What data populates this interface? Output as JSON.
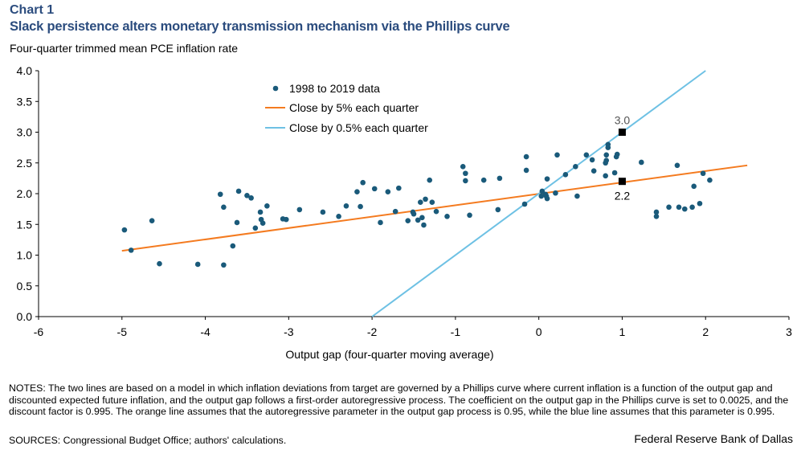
{
  "header": {
    "label": "Chart 1",
    "title": "Slack persistence alters monetary transmission mechanism via the Phillips curve"
  },
  "footer": {
    "notes": "NOTES: The two lines are based on a model in which inflation deviations from target are governed by a Phillips curve where current inflation is a function of the output gap and discounted expected future inflation, and the output gap follows a first-order autoregressive process. The coefficient on the output gap in the Phillips curve is set to 0.0025, and the discount factor is 0.995. The orange line assumes that the autoregressive parameter in the output gap process is 0.95, while the blue line assumes that this parameter is 0.995.",
    "sources": "SOURCES: Congressional Budget Office; authors' calculations.",
    "credit": "Federal Reserve Bank of Dallas"
  },
  "chart_data": {
    "type": "scatter",
    "ylabel": "Four-quarter trimmed mean PCE inflation rate",
    "xlabel": "Output gap (four-quarter moving average)",
    "xlim": [
      -6,
      3
    ],
    "ylim": [
      0,
      4
    ],
    "xticks": [
      -6,
      -5,
      -4,
      -3,
      -2,
      -1,
      0,
      1,
      2,
      3
    ],
    "yticks": [
      "0.0",
      "0.5",
      "1.0",
      "1.5",
      "2.0",
      "2.5",
      "3.0",
      "3.5",
      "4.0"
    ],
    "grid": false,
    "legend_position": "top-left",
    "colors": {
      "scatter": "#1a5a7a",
      "orange": "#f47b20",
      "blue": "#6ec1e4",
      "marker": "#000000"
    },
    "series": [
      {
        "name": "1998 to 2019 data",
        "kind": "scatter",
        "points": [
          [
            -4.97,
            1.41
          ],
          [
            -4.89,
            1.08
          ],
          [
            -4.64,
            1.56
          ],
          [
            -4.55,
            0.86
          ],
          [
            -4.09,
            0.85
          ],
          [
            -3.82,
            1.99
          ],
          [
            -3.78,
            1.78
          ],
          [
            -3.78,
            0.84
          ],
          [
            -3.67,
            1.15
          ],
          [
            -3.62,
            1.53
          ],
          [
            -3.6,
            2.04
          ],
          [
            -3.5,
            1.97
          ],
          [
            -3.45,
            1.93
          ],
          [
            -3.4,
            1.44
          ],
          [
            -3.34,
            1.7
          ],
          [
            -3.33,
            1.58
          ],
          [
            -3.31,
            1.52
          ],
          [
            -3.26,
            1.8
          ],
          [
            -3.07,
            1.59
          ],
          [
            -3.03,
            1.58
          ],
          [
            -2.87,
            1.74
          ],
          [
            -2.59,
            1.7
          ],
          [
            -2.4,
            1.63
          ],
          [
            -2.31,
            1.8
          ],
          [
            -2.18,
            2.03
          ],
          [
            -2.14,
            1.79
          ],
          [
            -2.11,
            2.18
          ],
          [
            -1.97,
            2.08
          ],
          [
            -1.9,
            1.53
          ],
          [
            -1.81,
            2.03
          ],
          [
            -1.72,
            1.71
          ],
          [
            -1.68,
            2.09
          ],
          [
            -1.57,
            1.56
          ],
          [
            -1.51,
            1.7
          ],
          [
            -1.5,
            1.67
          ],
          [
            -1.45,
            1.57
          ],
          [
            -1.42,
            1.86
          ],
          [
            -1.4,
            1.61
          ],
          [
            -1.38,
            1.49
          ],
          [
            -1.36,
            1.91
          ],
          [
            -1.31,
            2.22
          ],
          [
            -1.28,
            1.86
          ],
          [
            -1.23,
            1.71
          ],
          [
            -1.1,
            1.63
          ],
          [
            -0.91,
            2.44
          ],
          [
            -0.88,
            2.33
          ],
          [
            -0.88,
            2.21
          ],
          [
            -0.83,
            1.65
          ],
          [
            -0.66,
            2.22
          ],
          [
            -0.49,
            1.74
          ],
          [
            -0.47,
            2.25
          ],
          [
            -0.17,
            1.83
          ],
          [
            -0.15,
            2.6
          ],
          [
            -0.15,
            2.38
          ],
          [
            0.04,
            2.04
          ],
          [
            0.03,
            1.96
          ],
          [
            0.09,
            1.96
          ],
          [
            0.1,
            1.92
          ],
          [
            0.08,
            1.99
          ],
          [
            0.1,
            2.24
          ],
          [
            0.2,
            2.01
          ],
          [
            0.22,
            2.63
          ],
          [
            0.32,
            2.31
          ],
          [
            0.44,
            2.44
          ],
          [
            0.46,
            1.96
          ],
          [
            0.57,
            2.63
          ],
          [
            0.64,
            2.55
          ],
          [
            0.66,
            2.37
          ],
          [
            0.8,
            2.29
          ],
          [
            0.8,
            2.5
          ],
          [
            0.81,
            2.54
          ],
          [
            0.81,
            2.63
          ],
          [
            0.83,
            2.8
          ],
          [
            0.83,
            2.75
          ],
          [
            0.91,
            2.34
          ],
          [
            0.93,
            2.6
          ],
          [
            0.94,
            2.64
          ],
          [
            1.23,
            2.51
          ],
          [
            1.41,
            1.7
          ],
          [
            1.41,
            1.63
          ],
          [
            1.56,
            1.78
          ],
          [
            1.66,
            2.46
          ],
          [
            1.68,
            1.78
          ],
          [
            1.75,
            1.75
          ],
          [
            1.84,
            1.78
          ],
          [
            1.86,
            2.12
          ],
          [
            1.93,
            1.84
          ],
          [
            1.97,
            2.33
          ],
          [
            2.05,
            2.22
          ]
        ]
      },
      {
        "name": "Close by 5% each quarter",
        "kind": "line",
        "points": [
          [
            -5,
            1.07
          ],
          [
            2.5,
            2.46
          ]
        ]
      },
      {
        "name": "Close by 0.5% each quarter",
        "kind": "line",
        "points": [
          [
            -2,
            0
          ],
          [
            2,
            4
          ]
        ]
      }
    ],
    "annotations": [
      {
        "x": 1,
        "y": 3.0,
        "label": "3.0"
      },
      {
        "x": 1,
        "y": 2.2,
        "label": "2.2"
      }
    ]
  }
}
